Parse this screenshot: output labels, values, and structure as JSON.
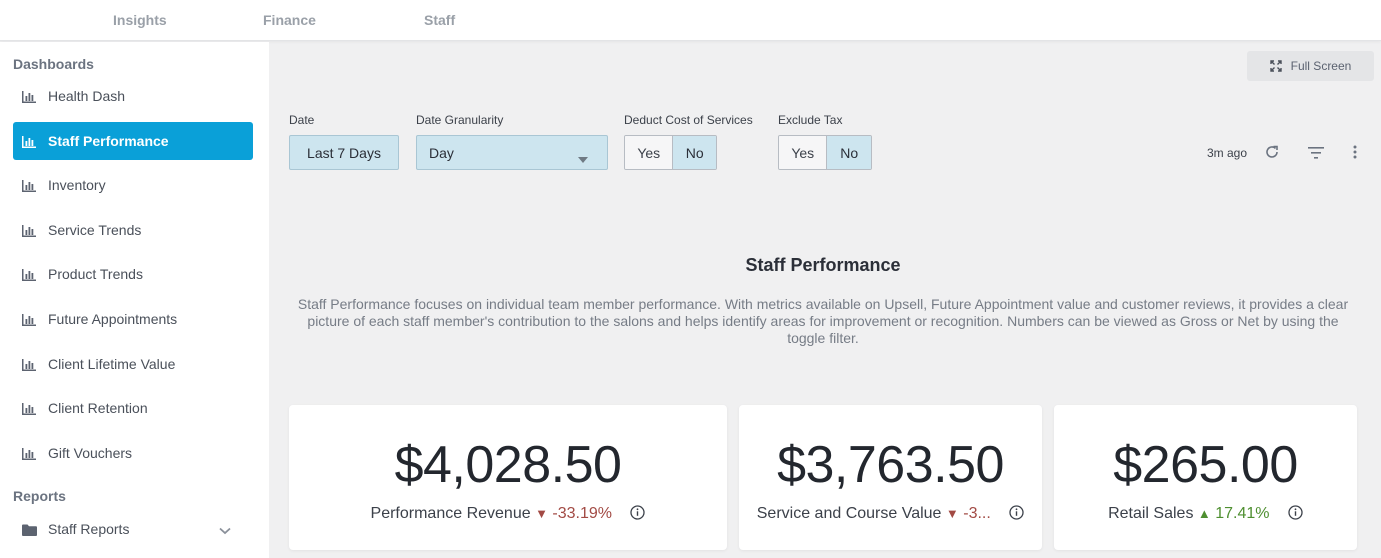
{
  "topnav": {
    "tabs": [
      "Insights",
      "Finance",
      "Staff"
    ]
  },
  "sidebar": {
    "dashboards_title": "Dashboards",
    "items": [
      {
        "label": "Health Dash",
        "icon": "bar-chart-icon"
      },
      {
        "label": "Staff Performance",
        "icon": "bar-chart-icon",
        "active": true
      },
      {
        "label": "Inventory",
        "icon": "bar-chart-icon"
      },
      {
        "label": "Service Trends",
        "icon": "bar-chart-icon"
      },
      {
        "label": "Product Trends",
        "icon": "bar-chart-icon"
      },
      {
        "label": "Future Appointments",
        "icon": "bar-chart-icon"
      },
      {
        "label": "Client Lifetime Value",
        "icon": "bar-chart-icon"
      },
      {
        "label": "Client Retention",
        "icon": "bar-chart-icon"
      },
      {
        "label": "Gift Vouchers",
        "icon": "bar-chart-icon"
      }
    ],
    "reports_title": "Reports",
    "reports_items": [
      {
        "label": "Staff Reports",
        "icon": "folder-icon"
      }
    ]
  },
  "toolbar": {
    "fullscreen_label": "Full Screen",
    "updated": "3m ago"
  },
  "filters": {
    "date": {
      "label": "Date",
      "value": "Last 7 Days"
    },
    "granularity": {
      "label": "Date Granularity",
      "value": "Day"
    },
    "deduct_cost": {
      "label": "Deduct Cost of Services",
      "yes": "Yes",
      "no": "No",
      "selected": "No"
    },
    "exclude_tax": {
      "label": "Exclude Tax",
      "yes": "Yes",
      "no": "No",
      "selected": "No"
    }
  },
  "description": {
    "title": "Staff Performance",
    "text": "Staff Performance focuses on individual team member performance. With metrics available on Upsell, Future Appointment value and customer reviews, it provides a clear picture of each staff member's contribution to the salons and helps identify areas for improvement or recognition. Numbers can be viewed as Gross or Net by using the toggle filter."
  },
  "cards": [
    {
      "value": "$4,028.50",
      "label": "Performance Revenue",
      "change": "-33.19%",
      "direction": "down"
    },
    {
      "value": "$3,763.50",
      "label": "Service and Course Value",
      "change": "-3...",
      "direction": "down"
    },
    {
      "value": "$265.00",
      "label": "Retail Sales",
      "change": "17.41%",
      "direction": "up"
    }
  ],
  "colors": {
    "accent": "#0aa0d8",
    "negative": "#a24a44",
    "positive": "#4e8f30",
    "filter_fill": "#cde5ef"
  }
}
